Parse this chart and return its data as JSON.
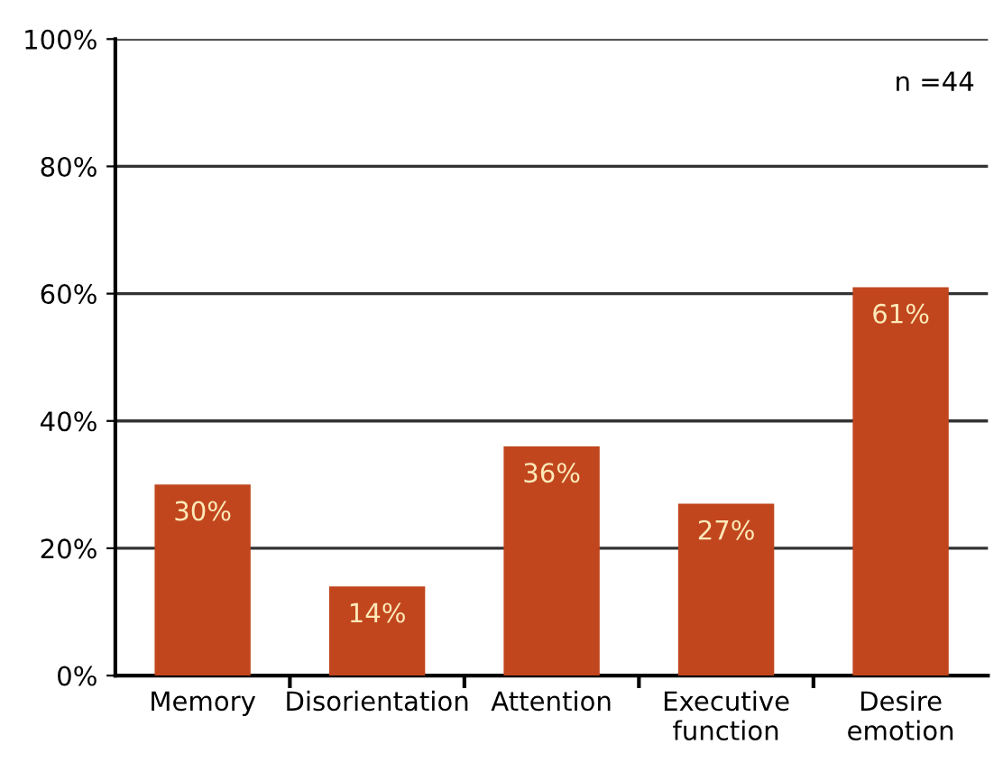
{
  "chart_data": {
    "type": "bar",
    "categories": [
      "Memory",
      "Disorientation",
      "Attention",
      "Executive\nfunction",
      "Desire\nemotion"
    ],
    "values": [
      30,
      14,
      36,
      27,
      61
    ],
    "value_labels": [
      "30%",
      "14%",
      "36%",
      "27%",
      "61%"
    ],
    "color": "#c1461e",
    "ylim": [
      0,
      100
    ],
    "yticks": [
      {
        "value": 0,
        "label": "0%"
      },
      {
        "value": 20,
        "label": "20%"
      },
      {
        "value": 40,
        "label": "40%"
      },
      {
        "value": 60,
        "label": "60%"
      },
      {
        "value": 80,
        "label": "80%"
      },
      {
        "value": 100,
        "label": "100%"
      }
    ],
    "grid": "y",
    "annotations": [
      "n =44"
    ]
  }
}
